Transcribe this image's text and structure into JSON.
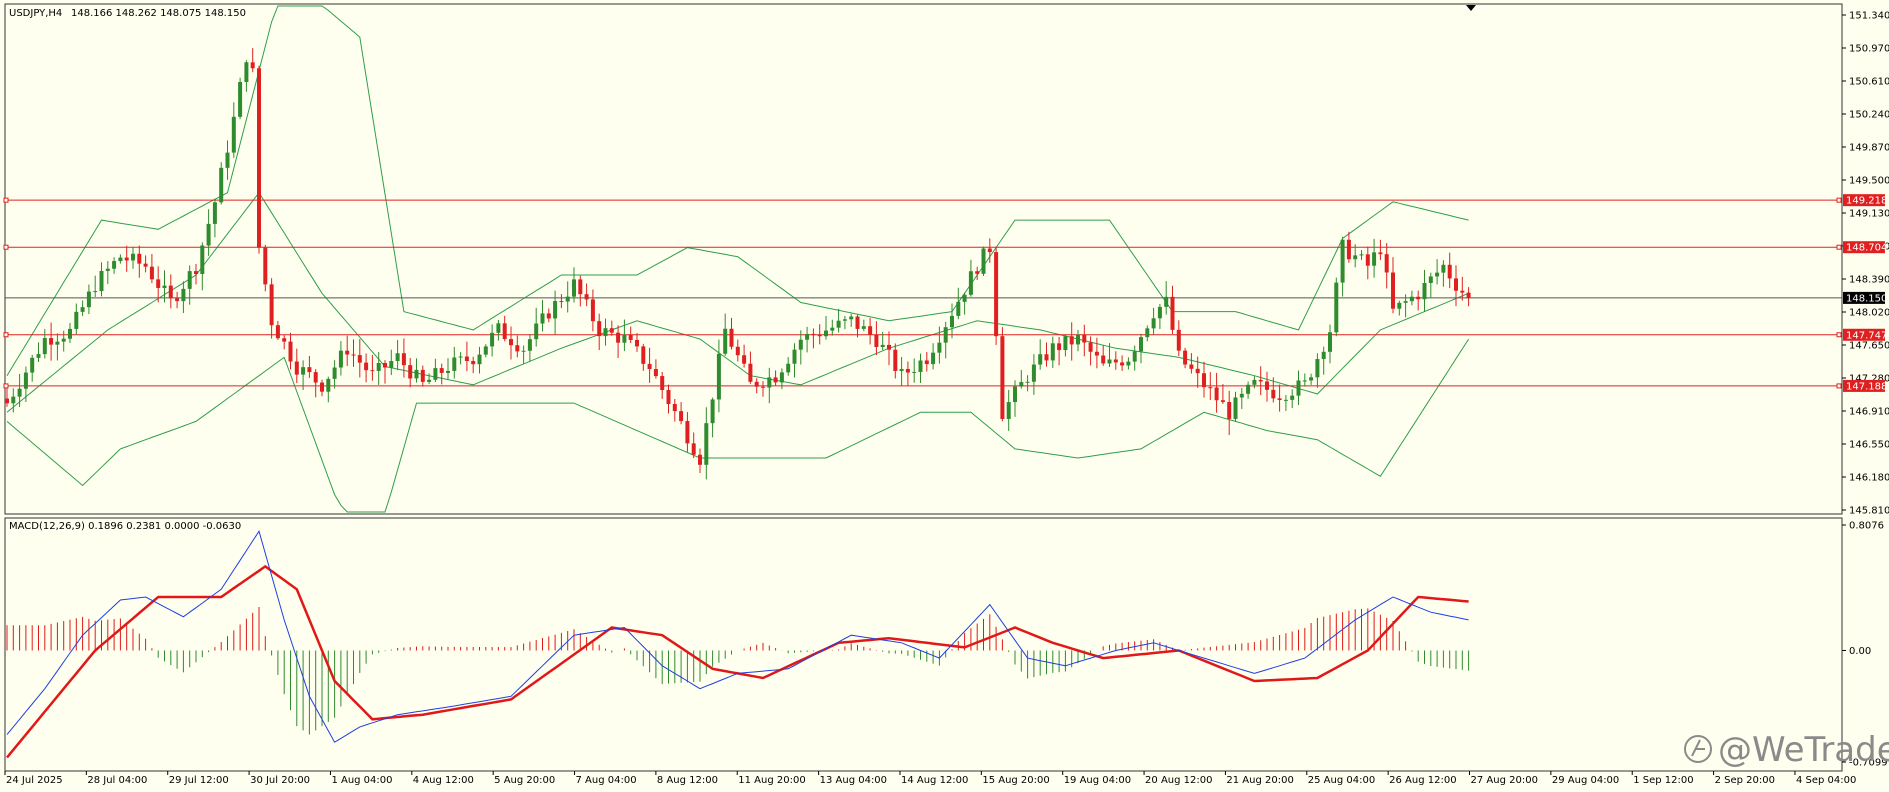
{
  "header": {
    "symbol": "USDJPY,H4",
    "ohlc": "148.166 148.262 148.075 148.150"
  },
  "macd_label": "MACD(12,26,9) 0.1896 0.2381 0.0000 -0.0630",
  "watermark": "@WeTrade",
  "colors": {
    "background": "#fffff0",
    "bull": "#2e8b2e",
    "bear": "#e02020",
    "band": "#2e9e4a",
    "level": "#e02020",
    "macd_line": "#1f3fe0",
    "signal_line": "#e01818"
  },
  "chart_data": [
    {
      "type": "candlestick",
      "panel": "price",
      "ylim": [
        145.81,
        151.34
      ],
      "y_ticks": [
        "151.340",
        "150.970",
        "150.610",
        "150.240",
        "149.870",
        "149.500",
        "149.130",
        "148.760",
        "148.390",
        "148.020",
        "147.650",
        "147.280",
        "146.910",
        "146.550",
        "146.180",
        "145.810"
      ],
      "x_labels": [
        "24 Jul 2025",
        "28 Jul 04:00",
        "29 Jul 12:00",
        "30 Jul 20:00",
        "1 Aug 04:00",
        "4 Aug 12:00",
        "5 Aug 20:00",
        "7 Aug 04:00",
        "8 Aug 12:00",
        "11 Aug 20:00",
        "13 Aug 04:00",
        "14 Aug 12:00",
        "15 Aug 20:00",
        "19 Aug 04:00",
        "20 Aug 12:00",
        "21 Aug 20:00",
        "25 Aug 04:00",
        "26 Aug 12:00",
        "27 Aug 20:00",
        "29 Aug 04:00",
        "1 Sep 12:00",
        "2 Sep 20:00",
        "4 Sep 04:00"
      ],
      "current_price": {
        "value": 148.15,
        "label": "148.150"
      },
      "levels": [
        {
          "value": 149.218,
          "label": "149.218"
        },
        {
          "value": 148.704,
          "label": "148.704"
        },
        {
          "value": 147.747,
          "label": "147.747"
        },
        {
          "value": 147.188,
          "label": "147.188"
        }
      ],
      "close_anchors": [
        [
          0,
          147.0
        ],
        [
          6,
          147.7
        ],
        [
          10,
          147.78
        ],
        [
          14,
          148.3
        ],
        [
          18,
          148.6
        ],
        [
          22,
          148.5
        ],
        [
          26,
          148.1
        ],
        [
          30,
          148.5
        ],
        [
          33,
          149.2
        ],
        [
          36,
          150.1
        ],
        [
          38,
          150.8
        ],
        [
          39,
          150.6
        ],
        [
          40,
          148.7
        ],
        [
          42,
          147.9
        ],
        [
          46,
          147.4
        ],
        [
          50,
          147.2
        ],
        [
          54,
          147.6
        ],
        [
          58,
          147.3
        ],
        [
          62,
          147.5
        ],
        [
          66,
          147.2
        ],
        [
          70,
          147.4
        ],
        [
          74,
          147.5
        ],
        [
          78,
          147.8
        ],
        [
          82,
          147.6
        ],
        [
          86,
          148.0
        ],
        [
          90,
          148.3
        ],
        [
          94,
          147.8
        ],
        [
          98,
          147.7
        ],
        [
          102,
          147.4
        ],
        [
          106,
          146.9
        ],
        [
          110,
          146.4
        ],
        [
          114,
          147.8
        ],
        [
          118,
          147.2
        ],
        [
          122,
          147.3
        ],
        [
          126,
          147.7
        ],
        [
          130,
          147.8
        ],
        [
          134,
          147.9
        ],
        [
          138,
          147.7
        ],
        [
          142,
          147.3
        ],
        [
          146,
          147.5
        ],
        [
          150,
          148.0
        ],
        [
          154,
          148.5
        ],
        [
          156,
          148.7
        ],
        [
          158,
          146.9
        ],
        [
          162,
          147.3
        ],
        [
          166,
          147.6
        ],
        [
          170,
          147.7
        ],
        [
          174,
          147.4
        ],
        [
          178,
          147.5
        ],
        [
          182,
          148.0
        ],
        [
          184,
          148.1
        ],
        [
          186,
          147.5
        ],
        [
          190,
          147.2
        ],
        [
          194,
          146.9
        ],
        [
          198,
          147.2
        ],
        [
          202,
          147.1
        ],
        [
          206,
          147.2
        ],
        [
          210,
          147.8
        ],
        [
          212,
          148.7
        ],
        [
          216,
          148.5
        ],
        [
          218,
          148.7
        ],
        [
          220,
          148.0
        ],
        [
          224,
          148.2
        ],
        [
          228,
          148.5
        ],
        [
          230,
          148.3
        ],
        [
          232,
          148.15
        ]
      ],
      "bollinger_upper_anchors": [
        [
          0,
          147.3
        ],
        [
          15,
          149.0
        ],
        [
          24,
          148.9
        ],
        [
          35,
          149.3
        ],
        [
          44,
          151.7
        ],
        [
          56,
          151.0
        ],
        [
          63,
          148.0
        ],
        [
          74,
          147.8
        ],
        [
          88,
          148.4
        ],
        [
          100,
          148.4
        ],
        [
          108,
          148.7
        ],
        [
          116,
          148.6
        ],
        [
          126,
          148.1
        ],
        [
          140,
          147.9
        ],
        [
          150,
          148.0
        ],
        [
          160,
          149.0
        ],
        [
          175,
          149.0
        ],
        [
          185,
          148.0
        ],
        [
          195,
          148.0
        ],
        [
          205,
          147.8
        ],
        [
          212,
          148.8
        ],
        [
          220,
          149.2
        ],
        [
          232,
          149.0
        ]
      ],
      "bollinger_mid_anchors": [
        [
          0,
          146.9
        ],
        [
          16,
          147.8
        ],
        [
          30,
          148.4
        ],
        [
          40,
          149.3
        ],
        [
          50,
          148.2
        ],
        [
          60,
          147.4
        ],
        [
          74,
          147.2
        ],
        [
          88,
          147.6
        ],
        [
          100,
          147.9
        ],
        [
          110,
          147.7
        ],
        [
          118,
          147.3
        ],
        [
          126,
          147.2
        ],
        [
          140,
          147.6
        ],
        [
          154,
          147.9
        ],
        [
          164,
          147.8
        ],
        [
          176,
          147.6
        ],
        [
          186,
          147.5
        ],
        [
          198,
          147.3
        ],
        [
          208,
          147.1
        ],
        [
          218,
          147.8
        ],
        [
          232,
          148.2
        ]
      ],
      "bollinger_lower_anchors": [
        [
          0,
          146.8
        ],
        [
          12,
          146.1
        ],
        [
          18,
          146.5
        ],
        [
          30,
          146.8
        ],
        [
          36,
          147.1
        ],
        [
          44,
          147.5
        ],
        [
          52,
          146.0
        ],
        [
          58,
          145.3
        ],
        [
          65,
          147.0
        ],
        [
          78,
          147.0
        ],
        [
          90,
          147.0
        ],
        [
          100,
          146.7
        ],
        [
          110,
          146.4
        ],
        [
          120,
          146.4
        ],
        [
          130,
          146.4
        ],
        [
          145,
          146.9
        ],
        [
          153,
          146.9
        ],
        [
          160,
          146.5
        ],
        [
          170,
          146.4
        ],
        [
          180,
          146.5
        ],
        [
          190,
          146.9
        ],
        [
          200,
          146.7
        ],
        [
          208,
          146.6
        ],
        [
          218,
          146.2
        ],
        [
          232,
          147.7
        ]
      ]
    },
    {
      "type": "macd",
      "panel": "oscillator",
      "ylim": [
        -0.7099,
        0.8076
      ],
      "y_ticks": [
        "0.8076",
        "0.00",
        "-0.7099"
      ],
      "macd_anchors": [
        [
          0,
          -0.55
        ],
        [
          6,
          -0.25
        ],
        [
          12,
          0.1
        ],
        [
          18,
          0.33
        ],
        [
          22,
          0.35
        ],
        [
          28,
          0.22
        ],
        [
          34,
          0.4
        ],
        [
          40,
          0.78
        ],
        [
          44,
          0.2
        ],
        [
          48,
          -0.3
        ],
        [
          52,
          -0.6
        ],
        [
          56,
          -0.5
        ],
        [
          62,
          -0.42
        ],
        [
          70,
          -0.37
        ],
        [
          80,
          -0.3
        ],
        [
          90,
          0.1
        ],
        [
          98,
          0.15
        ],
        [
          104,
          -0.1
        ],
        [
          110,
          -0.25
        ],
        [
          116,
          -0.15
        ],
        [
          124,
          -0.12
        ],
        [
          134,
          0.1
        ],
        [
          142,
          0.05
        ],
        [
          148,
          -0.05
        ],
        [
          156,
          0.3
        ],
        [
          162,
          -0.05
        ],
        [
          168,
          -0.1
        ],
        [
          176,
          0.0
        ],
        [
          182,
          0.05
        ],
        [
          190,
          -0.05
        ],
        [
          198,
          -0.15
        ],
        [
          206,
          -0.05
        ],
        [
          214,
          0.2
        ],
        [
          220,
          0.35
        ],
        [
          226,
          0.25
        ],
        [
          232,
          0.2
        ]
      ],
      "signal_anchors": [
        [
          0,
          -0.7
        ],
        [
          14,
          0.0
        ],
        [
          24,
          0.35
        ],
        [
          34,
          0.35
        ],
        [
          41,
          0.55
        ],
        [
          46,
          0.4
        ],
        [
          52,
          -0.2
        ],
        [
          58,
          -0.45
        ],
        [
          66,
          -0.42
        ],
        [
          80,
          -0.32
        ],
        [
          96,
          0.15
        ],
        [
          104,
          0.1
        ],
        [
          112,
          -0.12
        ],
        [
          120,
          -0.18
        ],
        [
          132,
          0.05
        ],
        [
          140,
          0.08
        ],
        [
          152,
          0.02
        ],
        [
          160,
          0.15
        ],
        [
          166,
          0.05
        ],
        [
          174,
          -0.05
        ],
        [
          186,
          0.0
        ],
        [
          198,
          -0.2
        ],
        [
          208,
          -0.18
        ],
        [
          216,
          0.0
        ],
        [
          224,
          0.35
        ],
        [
          232,
          0.32
        ]
      ]
    }
  ]
}
